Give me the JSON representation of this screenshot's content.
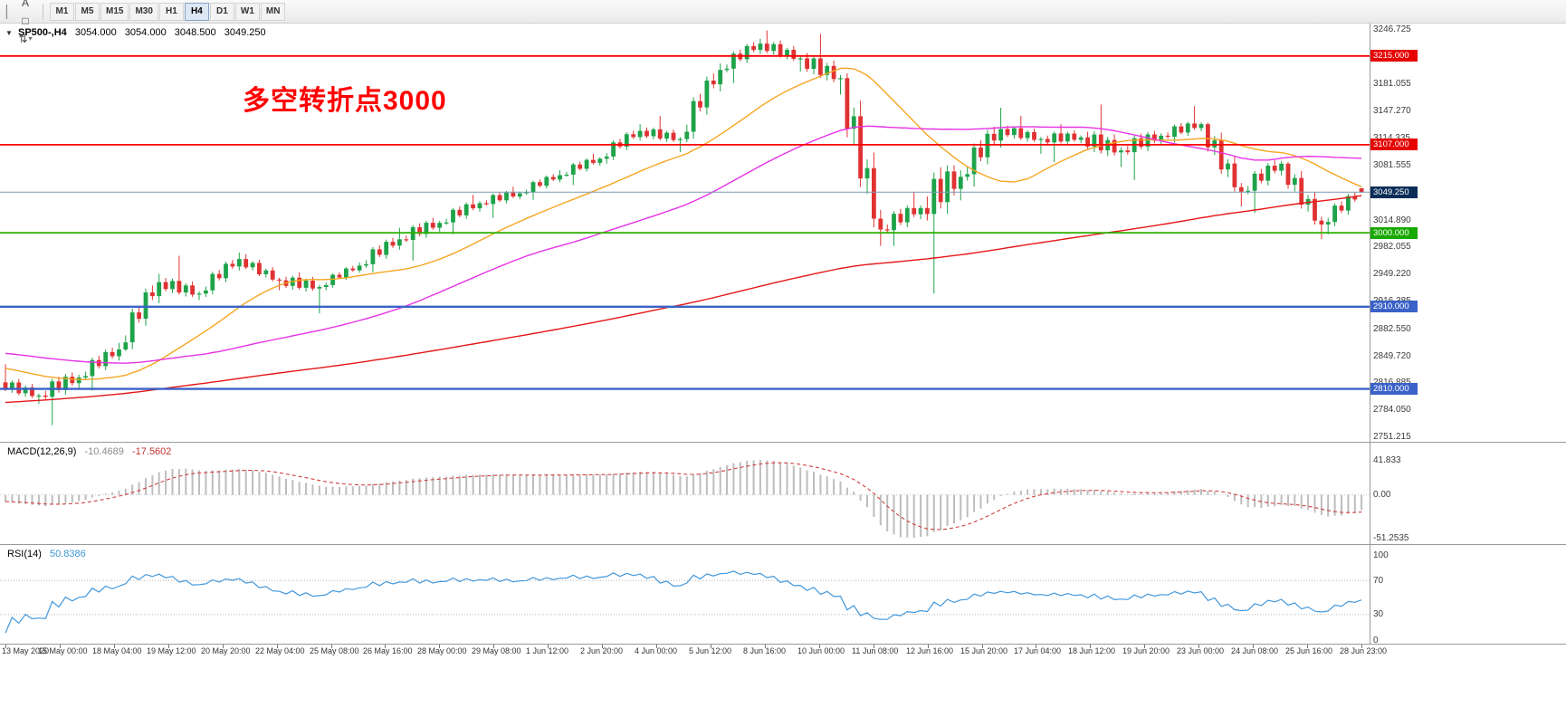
{
  "colors": {
    "up_candle": "#1ea34a",
    "down_candle": "#e03232",
    "ma_fast": "#f5a623",
    "ma_mid": "#e632e6",
    "ma_slow": "#e51717",
    "resistance_line": "#ff0000",
    "support_green": "#2db200",
    "support_blue": "#3a62c8",
    "current_price_bg": "#0b2e59",
    "macd_histogram": "#bdbdbd",
    "macd_signal": "#d04040",
    "rsi_line": "#4398dc",
    "annotation": "#ff0000"
  },
  "toolbar": {
    "tools": [
      {
        "name": "crosshair",
        "glyph": "+"
      },
      {
        "name": "text-label",
        "glyph": "A"
      },
      {
        "name": "shapes",
        "glyph": "□"
      },
      {
        "name": "arrange",
        "glyph": "⇅",
        "dropdown": true
      }
    ],
    "timeframes": [
      "M1",
      "M5",
      "M15",
      "M30",
      "H1",
      "H4",
      "D1",
      "W1",
      "MN"
    ],
    "active_timeframe": "H4"
  },
  "chart": {
    "symbol_ohlc_line": {
      "symbol": "SP500-,H4",
      "open": "3054.000",
      "high": "3054.000",
      "low": "3048.500",
      "close": "3049.250"
    },
    "annotation": "多空转折点3000",
    "current_price_label": "3049.250",
    "price_axis_labels": [
      "3246.725",
      "3181.055",
      "3147.270",
      "3114.335",
      "3081.555",
      "3014.890",
      "2982.055",
      "2949.220",
      "2916.385",
      "2882.550",
      "2849.720",
      "2816.885",
      "2784.050",
      "2751.215"
    ]
  },
  "indicators": {
    "macd": {
      "label": "MACD(12,26,9)",
      "value_main": "-10.4689",
      "value_signal": "-17.5602",
      "params": [
        12,
        26,
        9
      ],
      "axis_labels": [
        "41.833",
        "0.00",
        "-51.2535"
      ],
      "axis_values": [
        41.833,
        0,
        -51.2535
      ]
    },
    "rsi": {
      "label": "RSI(14)",
      "value": "50.8386",
      "period": 14,
      "axis_labels": [
        "100",
        "70",
        "30",
        "0"
      ],
      "axis_values": [
        100,
        70,
        30,
        0
      ],
      "levels": [
        70,
        30
      ]
    }
  },
  "time_axis": [
    "13 May 2020",
    "15 May 00:00",
    "18 May 04:00",
    "19 May 12:00",
    "20 May 20:00",
    "22 May 04:00",
    "25 May 08:00",
    "26 May 16:00",
    "28 May 00:00",
    "29 May 08:00",
    "1 Jun 12:00",
    "2 Jun 20:00",
    "4 Jun 00:00",
    "5 Jun 12:00",
    "8 Jun 16:00",
    "10 Jun 00:00",
    "11 Jun 08:00",
    "12 Jun 16:00",
    "15 Jun 20:00",
    "17 Jun 04:00",
    "18 Jun 12:00",
    "19 Jun 20:00",
    "23 Jun 00:00",
    "24 Jun 08:00",
    "25 Jun 16:00",
    "28 Jun 23:00"
  ],
  "chart_data": {
    "type": "candlestick",
    "symbol": "SP500-",
    "timeframe": "H4",
    "bars_per_day": 6,
    "price_axis_range": [
      2751.215,
      3246.725
    ],
    "current_price": 3049.25,
    "last_bar_ohlc": [
      3054.0,
      3054.0,
      3048.5,
      3049.25
    ],
    "daily_ohlc": [
      [
        "13 May",
        2818,
        2840,
        2792,
        2802
      ],
      [
        "14 May",
        2802,
        2830,
        2766,
        2824
      ],
      [
        "15 May",
        2824,
        2866,
        2808,
        2858
      ],
      [
        "18 May",
        2858,
        2950,
        2856,
        2940
      ],
      [
        "19 May",
        2940,
        2972,
        2918,
        2926
      ],
      [
        "20 May",
        2926,
        2976,
        2922,
        2968
      ],
      [
        "21 May",
        2968,
        2974,
        2930,
        2942
      ],
      [
        "22 May",
        2942,
        2952,
        2902,
        2934
      ],
      [
        "25 May",
        2934,
        2964,
        2930,
        2960
      ],
      [
        "26 May",
        2960,
        3006,
        2952,
        2992
      ],
      [
        "27 May",
        2992,
        3018,
        2966,
        3012
      ],
      [
        "28 May",
        3012,
        3046,
        2998,
        3036
      ],
      [
        "29 May",
        3036,
        3056,
        3018,
        3048
      ],
      [
        "1 Jun",
        3048,
        3076,
        3040,
        3070
      ],
      [
        "2 Jun",
        3070,
        3096,
        3058,
        3090
      ],
      [
        "3 Jun",
        3090,
        3132,
        3084,
        3124
      ],
      [
        "4 Jun",
        3124,
        3142,
        3098,
        3114
      ],
      [
        "5 Jun",
        3114,
        3206,
        3110,
        3198
      ],
      [
        "8 Jun",
        3198,
        3236,
        3182,
        3230
      ],
      [
        "9 Jun",
        3230,
        3246,
        3196,
        3212
      ],
      [
        "10 Jun",
        3212,
        3242,
        3168,
        3188
      ],
      [
        "11 Jun",
        3188,
        3194,
        2984,
        3004
      ],
      [
        "12 Jun",
        3004,
        3050,
        2984,
        3030
      ],
      [
        "15 Jun",
        3030,
        3082,
        2926,
        3068
      ],
      [
        "16 Jun",
        3068,
        3152,
        3056,
        3126
      ],
      [
        "17 Jun",
        3126,
        3142,
        3096,
        3114
      ],
      [
        "18 Jun",
        3114,
        3132,
        3086,
        3116
      ],
      [
        "19 Jun",
        3116,
        3156,
        3080,
        3100
      ],
      [
        "22 Jun",
        3100,
        3124,
        3064,
        3118
      ],
      [
        "23 Jun",
        3118,
        3154,
        3110,
        3132
      ],
      [
        "24 Jun",
        3132,
        3134,
        3032,
        3050
      ],
      [
        "25 Jun",
        3050,
        3088,
        3024,
        3084
      ],
      [
        "26 Jun",
        3084,
        3086,
        2992,
        3010
      ],
      [
        "29 Jun",
        3010,
        3054,
        2998,
        3049.25
      ]
    ],
    "horizontal_levels": [
      {
        "price": 3215.0,
        "label": "3215.000",
        "style": "red"
      },
      {
        "price": 3107.0,
        "label": "3107.000",
        "style": "red"
      },
      {
        "price": 3000.0,
        "label": "3000.000",
        "style": "green"
      },
      {
        "price": 2910.0,
        "label": "2910.000",
        "style": "blue"
      },
      {
        "price": 2810.0,
        "label": "2810.000",
        "style": "blue"
      }
    ],
    "moving_averages": [
      {
        "period": 24,
        "color_key": "ma_fast"
      },
      {
        "period": 60,
        "color_key": "ma_mid"
      },
      {
        "period": 200,
        "color_key": "ma_slow"
      }
    ],
    "macd_current": [
      -10.4689,
      -17.5602
    ],
    "rsi_current": 50.8386
  }
}
